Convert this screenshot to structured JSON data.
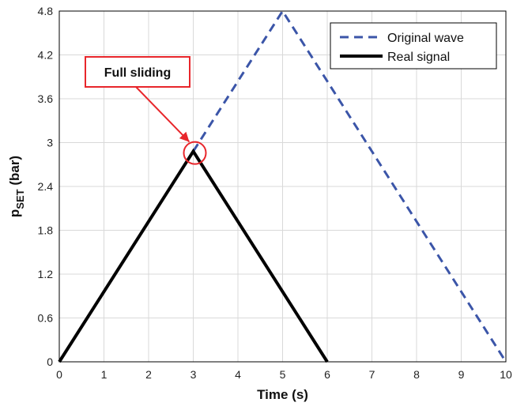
{
  "chart_data": {
    "type": "line",
    "title": "",
    "xlabel": "Time (s)",
    "ylabel_main": "p",
    "ylabel_sub": "SET",
    "ylabel_unit": " (bar)",
    "xlim": [
      0,
      10
    ],
    "ylim": [
      0,
      4.8
    ],
    "xticks": [
      "0",
      "1",
      "2",
      "3",
      "4",
      "5",
      "6",
      "7",
      "8",
      "9",
      "10"
    ],
    "yticks": [
      "0",
      "0.6",
      "1.2",
      "1.8",
      "2.4",
      "3",
      "3.6",
      "4.2",
      "4.8"
    ],
    "grid": true,
    "legend_position": "top-right",
    "series": [
      {
        "name": "Original wave",
        "style": "dashed",
        "color": "#3b55a8",
        "x": [
          3,
          5,
          10
        ],
        "y": [
          2.88,
          4.8,
          0
        ]
      },
      {
        "name": "Real signal",
        "style": "solid",
        "color": "#000000",
        "x": [
          0,
          3,
          6
        ],
        "y": [
          0,
          2.88,
          0
        ]
      }
    ],
    "annotation": {
      "text": "Full sliding",
      "x": 3,
      "y": 2.88,
      "color": "#e8262b"
    }
  }
}
